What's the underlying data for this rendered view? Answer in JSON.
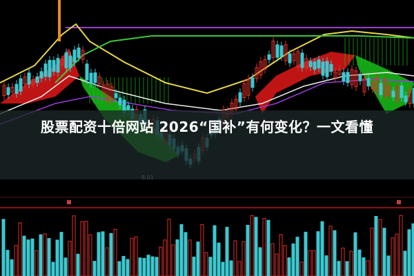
{
  "article": {
    "title": "股票配资十倍网站 2026“国补”有何变化？一文看懂"
  },
  "chart": {
    "low_price_label": "8.01"
  },
  "colors": {
    "background": "#000000",
    "up": "#e0302a",
    "down": "#3cc8d0",
    "ma_yellow": "#e8d84a",
    "ma_green": "#3cc83c",
    "ma_purple": "#9a3cd8",
    "ma_white": "#f0f0f0",
    "fill_red": "#e01818",
    "fill_green": "#18c018"
  }
}
